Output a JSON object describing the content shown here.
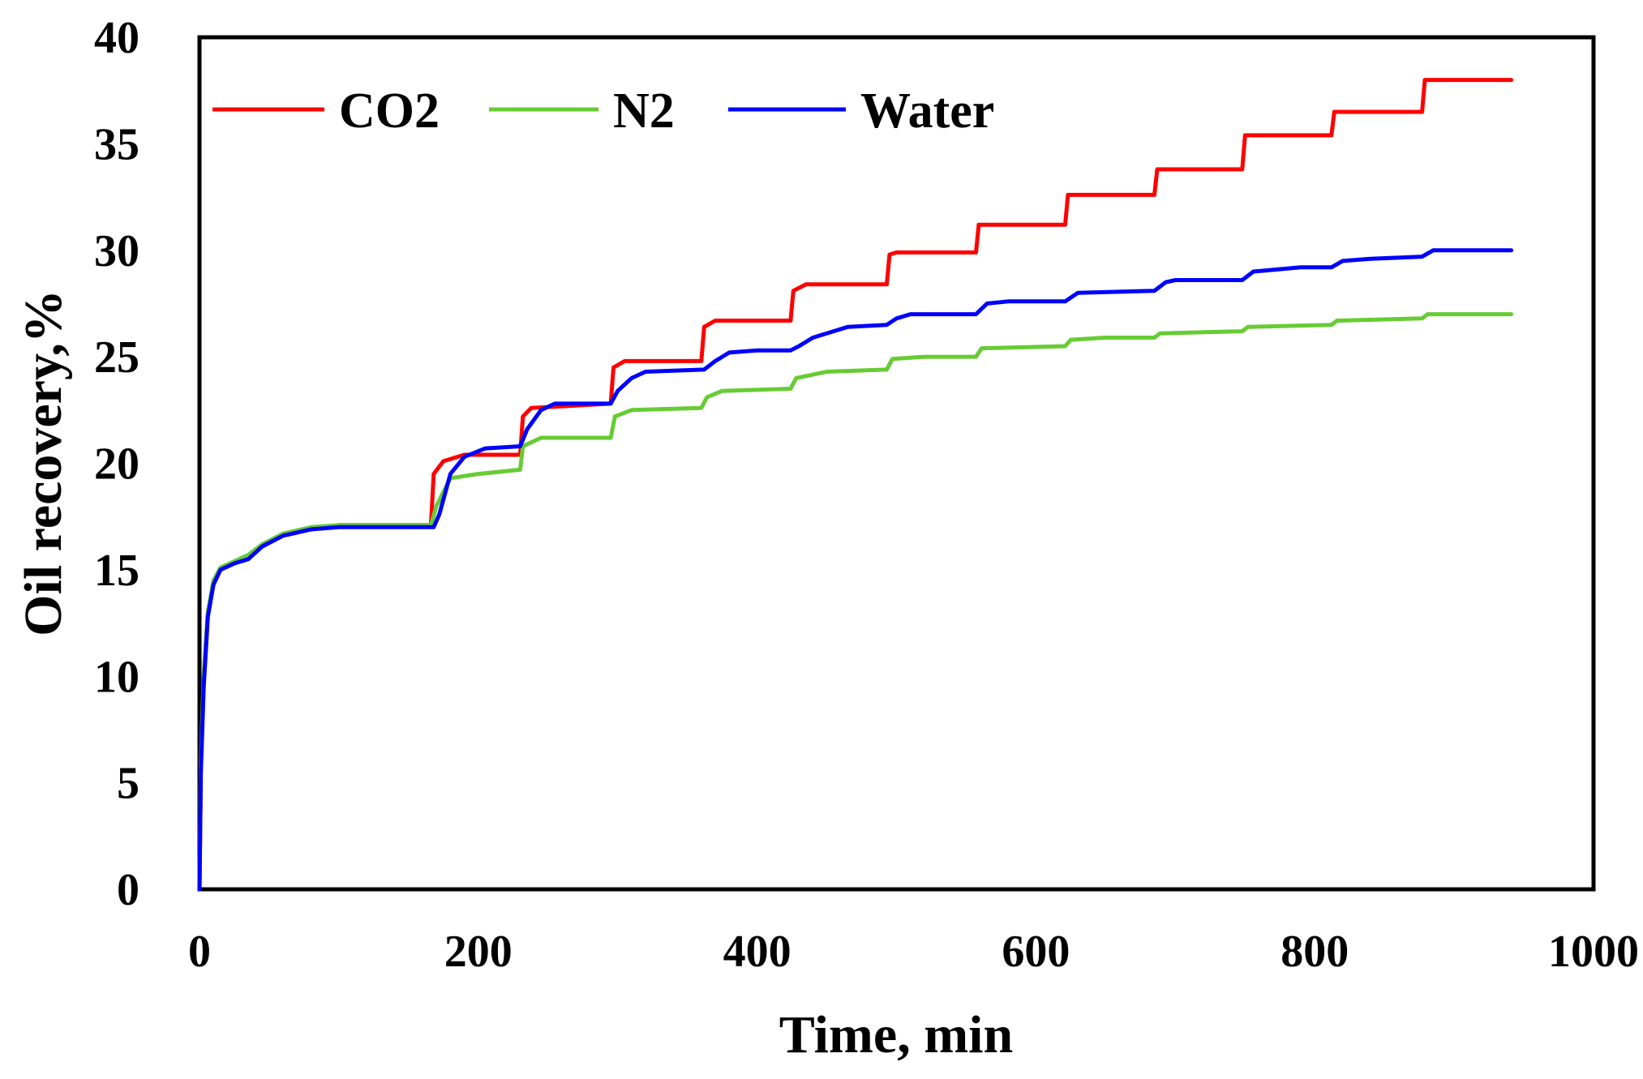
{
  "chart_data": {
    "type": "line",
    "title": "",
    "xlabel": "Time, min",
    "ylabel": "Oil recovery,%",
    "xlim": [
      0,
      1000
    ],
    "ylim": [
      0,
      40
    ],
    "xticks": [
      0,
      200,
      400,
      600,
      800,
      1000
    ],
    "yticks": [
      0,
      5,
      10,
      15,
      20,
      25,
      30,
      35,
      40
    ],
    "grid": false,
    "legend_position": "top-left",
    "series": [
      {
        "name": "CO2",
        "color": "#ff0000",
        "points": [
          [
            0,
            0
          ],
          [
            1,
            6
          ],
          [
            3,
            10
          ],
          [
            6,
            13
          ],
          [
            10,
            14.4
          ],
          [
            15,
            15
          ],
          [
            25,
            15.3
          ],
          [
            35,
            15.6
          ],
          [
            45,
            16.1
          ],
          [
            60,
            16.6
          ],
          [
            80,
            16.9
          ],
          [
            100,
            17.1
          ],
          [
            166,
            17.1
          ],
          [
            168,
            19.5
          ],
          [
            175,
            20.1
          ],
          [
            190,
            20.4
          ],
          [
            230,
            20.4
          ],
          [
            232,
            22.2
          ],
          [
            238,
            22.6
          ],
          [
            295,
            22.8
          ],
          [
            297,
            24.5
          ],
          [
            305,
            24.8
          ],
          [
            360,
            24.8
          ],
          [
            362,
            26.4
          ],
          [
            370,
            26.7
          ],
          [
            424,
            26.7
          ],
          [
            426,
            28.1
          ],
          [
            435,
            28.4
          ],
          [
            493,
            28.4
          ],
          [
            495,
            29.8
          ],
          [
            500,
            29.9
          ],
          [
            557,
            29.9
          ],
          [
            559,
            31.2
          ],
          [
            621,
            31.2
          ],
          [
            623,
            32.6
          ],
          [
            685,
            32.6
          ],
          [
            687,
            33.8
          ],
          [
            748,
            33.8
          ],
          [
            750,
            35.4
          ],
          [
            812,
            35.4
          ],
          [
            814,
            36.5
          ],
          [
            877,
            36.5
          ],
          [
            879,
            38.0
          ],
          [
            941,
            38.0
          ]
        ]
      },
      {
        "name": "N2",
        "color": "#66cc33",
        "points": [
          [
            0,
            0
          ],
          [
            1,
            6
          ],
          [
            3,
            10
          ],
          [
            6,
            13
          ],
          [
            10,
            14.5
          ],
          [
            15,
            15.1
          ],
          [
            25,
            15.4
          ],
          [
            35,
            15.7
          ],
          [
            45,
            16.2
          ],
          [
            60,
            16.7
          ],
          [
            80,
            17.0
          ],
          [
            100,
            17.1
          ],
          [
            166,
            17.1
          ],
          [
            170,
            18.0
          ],
          [
            180,
            19.3
          ],
          [
            200,
            19.5
          ],
          [
            230,
            19.7
          ],
          [
            232,
            20.8
          ],
          [
            245,
            21.2
          ],
          [
            295,
            21.2
          ],
          [
            298,
            22.2
          ],
          [
            310,
            22.5
          ],
          [
            360,
            22.6
          ],
          [
            364,
            23.1
          ],
          [
            375,
            23.4
          ],
          [
            424,
            23.5
          ],
          [
            428,
            24.0
          ],
          [
            450,
            24.3
          ],
          [
            493,
            24.4
          ],
          [
            497,
            24.9
          ],
          [
            520,
            25.0
          ],
          [
            557,
            25.0
          ],
          [
            561,
            25.4
          ],
          [
            621,
            25.5
          ],
          [
            625,
            25.8
          ],
          [
            650,
            25.9
          ],
          [
            685,
            25.9
          ],
          [
            689,
            26.1
          ],
          [
            748,
            26.2
          ],
          [
            752,
            26.4
          ],
          [
            812,
            26.5
          ],
          [
            816,
            26.7
          ],
          [
            877,
            26.8
          ],
          [
            881,
            27.0
          ],
          [
            941,
            27.0
          ]
        ]
      },
      {
        "name": "Water",
        "color": "#0000ff",
        "points": [
          [
            0,
            0
          ],
          [
            1,
            5.5
          ],
          [
            3,
            9.5
          ],
          [
            6,
            12.8
          ],
          [
            10,
            14.3
          ],
          [
            15,
            15.0
          ],
          [
            25,
            15.3
          ],
          [
            35,
            15.5
          ],
          [
            45,
            16.1
          ],
          [
            60,
            16.6
          ],
          [
            80,
            16.9
          ],
          [
            100,
            17.0
          ],
          [
            168,
            17.0
          ],
          [
            172,
            17.6
          ],
          [
            180,
            19.5
          ],
          [
            190,
            20.3
          ],
          [
            205,
            20.7
          ],
          [
            230,
            20.8
          ],
          [
            235,
            21.6
          ],
          [
            245,
            22.5
          ],
          [
            255,
            22.8
          ],
          [
            295,
            22.8
          ],
          [
            300,
            23.4
          ],
          [
            310,
            24.0
          ],
          [
            320,
            24.3
          ],
          [
            362,
            24.4
          ],
          [
            370,
            24.8
          ],
          [
            380,
            25.2
          ],
          [
            400,
            25.3
          ],
          [
            424,
            25.3
          ],
          [
            430,
            25.5
          ],
          [
            440,
            25.9
          ],
          [
            465,
            26.4
          ],
          [
            493,
            26.5
          ],
          [
            500,
            26.8
          ],
          [
            510,
            27.0
          ],
          [
            557,
            27.0
          ],
          [
            565,
            27.5
          ],
          [
            580,
            27.6
          ],
          [
            621,
            27.6
          ],
          [
            630,
            28.0
          ],
          [
            685,
            28.1
          ],
          [
            693,
            28.5
          ],
          [
            700,
            28.6
          ],
          [
            748,
            28.6
          ],
          [
            756,
            29.0
          ],
          [
            790,
            29.2
          ],
          [
            812,
            29.2
          ],
          [
            820,
            29.5
          ],
          [
            840,
            29.6
          ],
          [
            877,
            29.7
          ],
          [
            885,
            30.0
          ],
          [
            941,
            30.0
          ]
        ]
      }
    ]
  }
}
